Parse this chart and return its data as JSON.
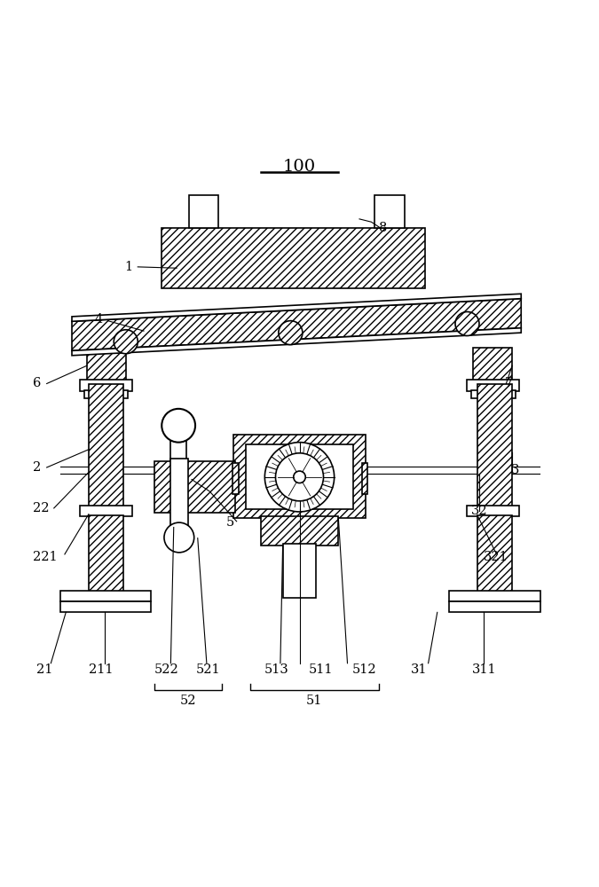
{
  "bg_color": "#ffffff",
  "line_color": "#000000",
  "hatch_pattern": "////",
  "title": "100",
  "lw": 1.2,
  "lw_thin": 0.8
}
